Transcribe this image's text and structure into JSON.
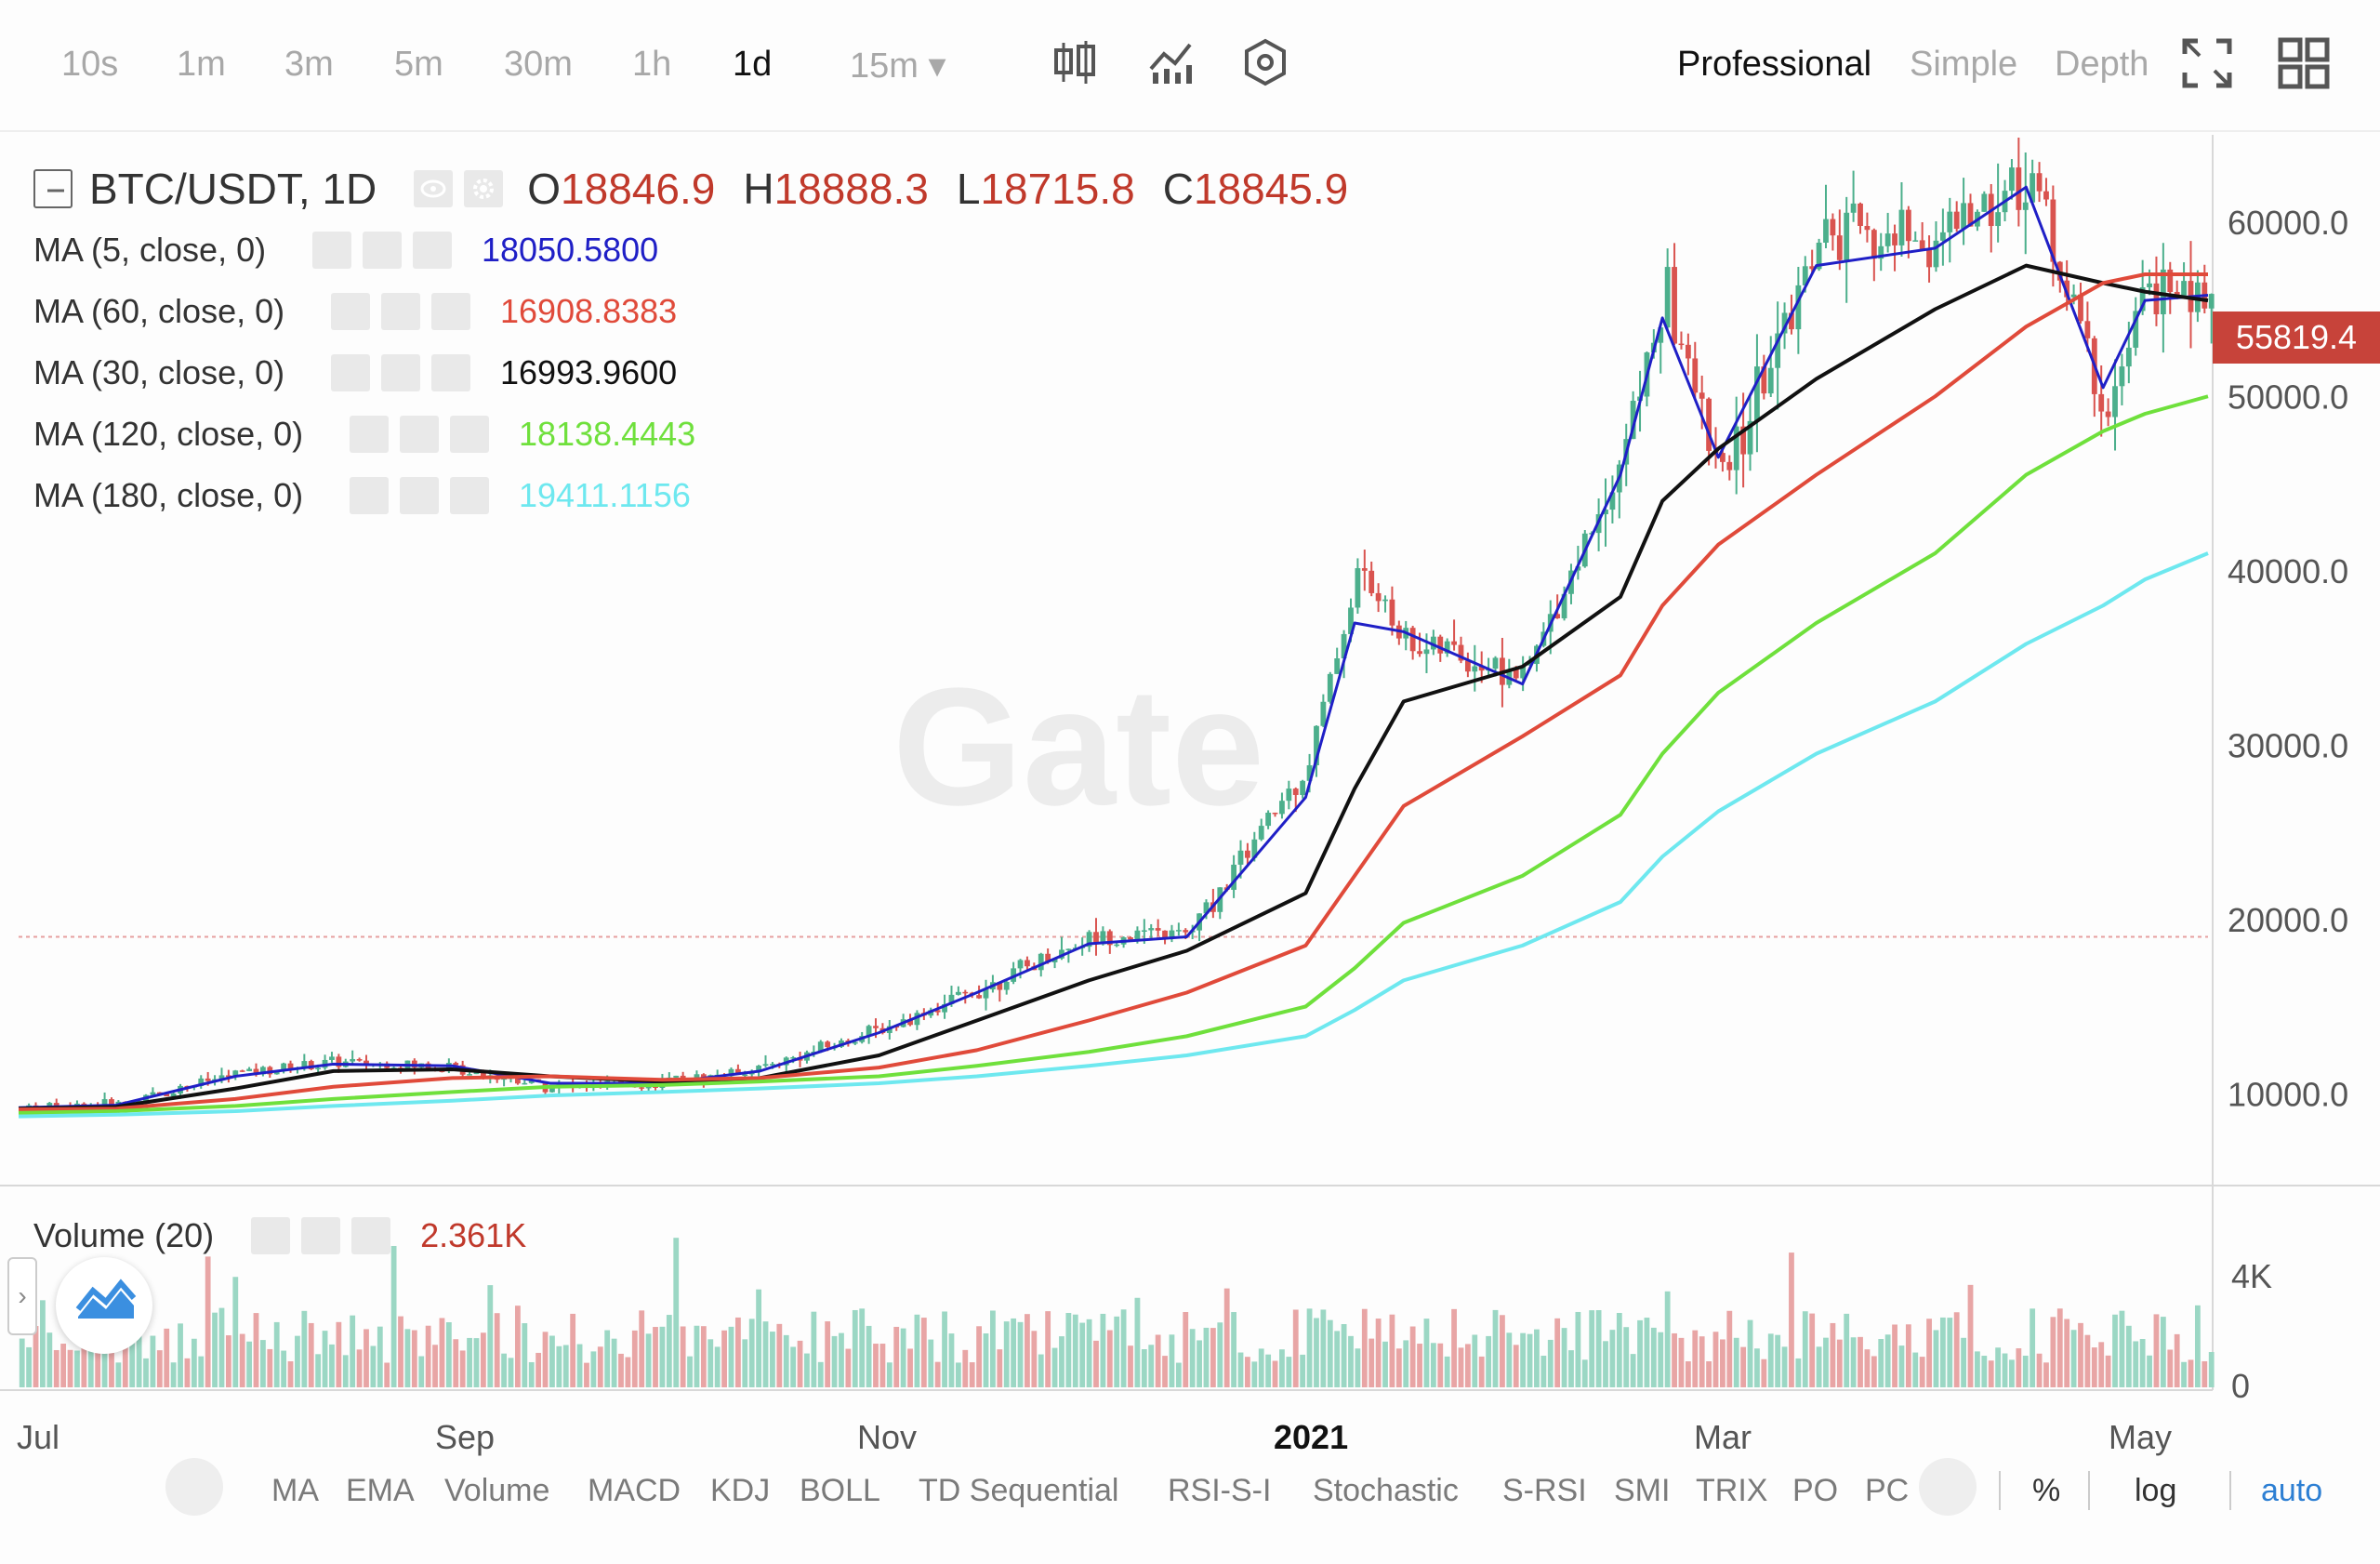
{
  "toolbar": {
    "timeframes": [
      "10s",
      "1m",
      "3m",
      "5m",
      "30m",
      "1h",
      "1d",
      "15m ▾"
    ],
    "active_timeframe": "1d",
    "modes": [
      "Professional",
      "Simple",
      "Depth"
    ],
    "active_mode": "Professional",
    "icons": [
      "candlestick-icon",
      "indicators-icon",
      "settings-icon",
      "fullscreen-icon",
      "layout-grid-icon"
    ]
  },
  "legend": {
    "symbol": "BTC/USDT, 1D",
    "ohlc": {
      "o_label": "O",
      "o": "18846.9",
      "h_label": "H",
      "h": "18888.3",
      "l_label": "L",
      "l": "18715.8",
      "c_label": "C",
      "c": "18845.9"
    },
    "ma": [
      {
        "label": "MA (5, close, 0)",
        "value": "18050.5800",
        "color": "#1f1fc6"
      },
      {
        "label": "MA (60, close, 0)",
        "value": "16908.8383",
        "color": "#e04a3a"
      },
      {
        "label": "MA (30, close, 0)",
        "value": "16993.9600",
        "color": "#111111"
      },
      {
        "label": "MA (120, close, 0)",
        "value": "18138.4443",
        "color": "#6fe03c"
      },
      {
        "label": "MA (180, close, 0)",
        "value": "19411.1156",
        "color": "#6ee8ef"
      }
    ]
  },
  "price_axis": {
    "ticks": [
      "60000.0",
      "50000.0",
      "40000.0",
      "30000.0",
      "20000.0",
      "10000.0"
    ],
    "last_price": "55819.4"
  },
  "volume": {
    "label": "Volume (20)",
    "value": "2.361K",
    "ticks": [
      "4K",
      "0"
    ]
  },
  "time_axis": {
    "labels": [
      "Jul",
      "Sep",
      "Nov",
      "2021",
      "Mar",
      "May"
    ]
  },
  "bottom_bar": {
    "indicators": [
      "MA",
      "EMA",
      "Volume",
      "MACD",
      "KDJ",
      "BOLL",
      "TD Sequential",
      "RSI-S-I",
      "Stochastic",
      "S-RSI",
      "SMI",
      "TRIX",
      "PO",
      "PC"
    ],
    "percent": "%",
    "log": "log",
    "auto": "auto"
  },
  "watermark": "Gate",
  "colors": {
    "up": "#4caf8c",
    "down": "#d9534f",
    "vol_up": "#9bd7c4",
    "vol_down": "#e8a5a5",
    "price_tag": "#c7433a"
  },
  "chart_data": {
    "type": "candlestick",
    "x": [
      "2020-07-01",
      "2020-07-15",
      "2020-08-01",
      "2020-08-15",
      "2020-09-01",
      "2020-09-15",
      "2020-10-01",
      "2020-10-15",
      "2020-11-01",
      "2020-11-15",
      "2020-12-01",
      "2020-12-15",
      "2021-01-01",
      "2021-01-08",
      "2021-01-15",
      "2021-02-01",
      "2021-02-15",
      "2021-02-21",
      "2021-03-01",
      "2021-03-15",
      "2021-04-01",
      "2021-04-14",
      "2021-04-25",
      "2021-05-01",
      "2021-05-10"
    ],
    "series": [
      {
        "name": "Close",
        "values": [
          9200,
          9400,
          11200,
          11800,
          11500,
          10400,
          10600,
          11500,
          13700,
          16000,
          19000,
          19200,
          29000,
          40000,
          36000,
          34000,
          47000,
          56000,
          45000,
          59000,
          59000,
          63000,
          49000,
          56000,
          55800
        ]
      },
      {
        "name": "MA (5, close, 0)",
        "values": [
          9200,
          9350,
          11000,
          11700,
          11600,
          10600,
          10600,
          11300,
          13500,
          15800,
          18600,
          19000,
          27000,
          37000,
          36500,
          33500,
          45500,
          54500,
          46500,
          57500,
          58500,
          62000,
          50500,
          55500,
          55800
        ]
      },
      {
        "name": "MA (30, close, 0)",
        "values": [
          9150,
          9250,
          10300,
          11300,
          11400,
          11000,
          10700,
          10900,
          12200,
          14200,
          16500,
          18200,
          21500,
          27500,
          32500,
          34500,
          38500,
          44000,
          47000,
          51000,
          55000,
          57500,
          56500,
          56000,
          55500
        ]
      },
      {
        "name": "MA (60, close, 0)",
        "values": [
          9100,
          9150,
          9700,
          10400,
          10900,
          11000,
          10800,
          10900,
          11500,
          12500,
          14200,
          15800,
          18500,
          22500,
          26500,
          30500,
          34000,
          38000,
          41500,
          45500,
          50000,
          54000,
          56500,
          57000,
          57000
        ]
      },
      {
        "name": "MA (120, close, 0)",
        "values": [
          8900,
          9000,
          9300,
          9700,
          10100,
          10400,
          10500,
          10700,
          11000,
          11600,
          12400,
          13300,
          15000,
          17200,
          19800,
          22500,
          26000,
          29500,
          33000,
          37000,
          41000,
          45500,
          48000,
          49000,
          50000
        ]
      },
      {
        "name": "MA (180, close, 0)",
        "values": [
          8700,
          8800,
          9000,
          9300,
          9600,
          9900,
          10100,
          10300,
          10600,
          11000,
          11600,
          12200,
          13300,
          14800,
          16500,
          18500,
          21000,
          23600,
          26200,
          29500,
          32500,
          35800,
          38000,
          39500,
          41000
        ]
      }
    ],
    "ylim": [
      5000,
      65000
    ],
    "y_ticks": [
      10000,
      20000,
      30000,
      40000,
      50000,
      60000
    ],
    "x_tick_labels": [
      "Jul",
      "Sep",
      "Nov",
      "2021",
      "Mar",
      "May"
    ],
    "reference_line": 19000,
    "volume": {
      "ylim": [
        0,
        6000
      ],
      "y_ticks": [
        0,
        4000
      ]
    }
  }
}
